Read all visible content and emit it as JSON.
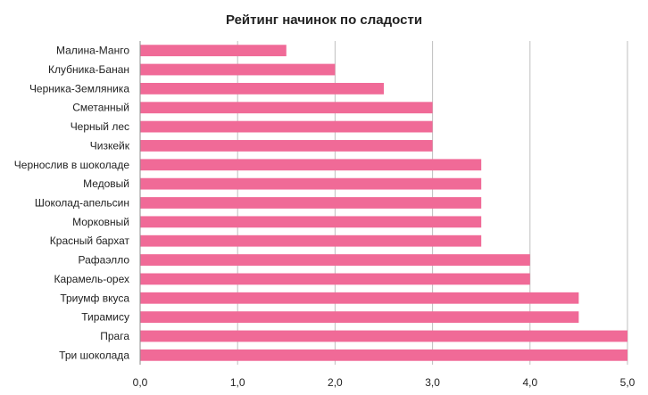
{
  "chart_data": {
    "type": "bar",
    "orientation": "horizontal",
    "title": "Рейтинг начинок по сладости",
    "xlabel": "",
    "ylabel": "",
    "categories": [
      "Малина-Манго",
      "Клубника-Банан",
      "Черника-Земляника",
      "Сметанный",
      "Черный лес",
      "Чизкейк",
      "Чернослив в шоколаде",
      "Медовый",
      "Шоколад-апельсин",
      "Морковный",
      "Красный бархат",
      "Рафаэлло",
      "Карамель-орех",
      "Триумф вкуса",
      "Тирамису",
      "Прага",
      "Три шоколада"
    ],
    "values": [
      1.5,
      2.0,
      2.5,
      3.0,
      3.0,
      3.0,
      3.5,
      3.5,
      3.5,
      3.5,
      3.5,
      4.0,
      4.0,
      4.5,
      4.5,
      5.0,
      5.0
    ],
    "xlim": [
      0,
      5
    ],
    "xticks": [
      "0,0",
      "1,0",
      "2,0",
      "3,0",
      "4,0",
      "5,0"
    ],
    "grid": true,
    "legend": "none",
    "bar_color": "#f06a97"
  }
}
